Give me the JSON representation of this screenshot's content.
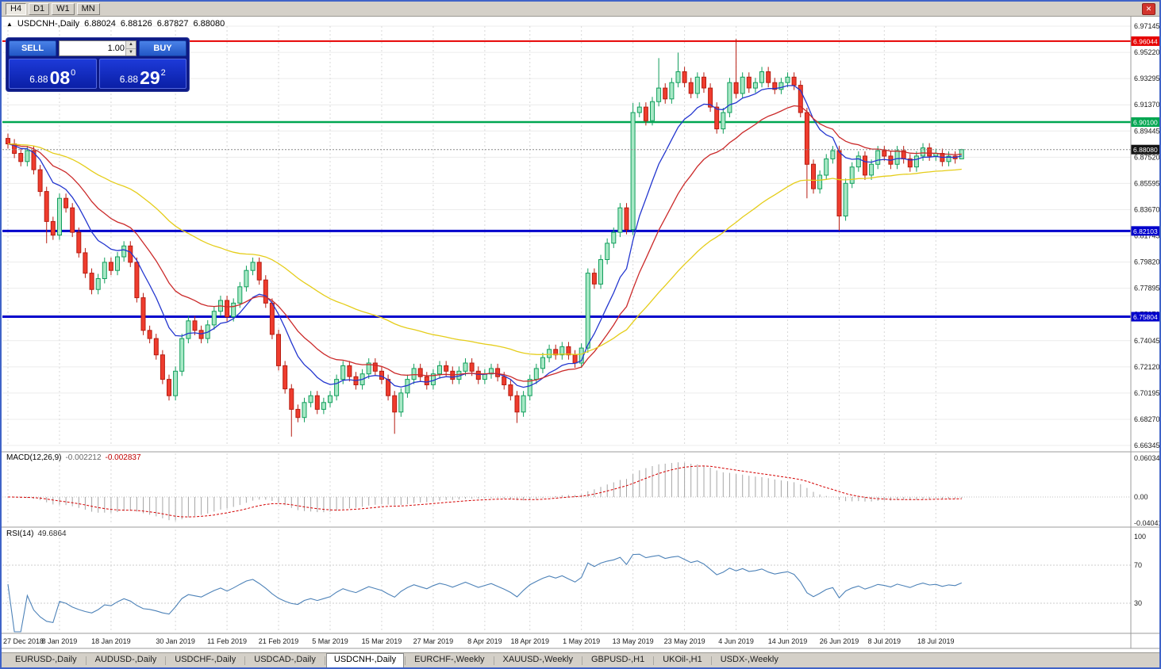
{
  "toolbar": {
    "timeframes": [
      "H4",
      "D1",
      "W1",
      "MN"
    ],
    "active_timeframe": "H4",
    "close_glyph": "✕"
  },
  "ohlc_line": {
    "expand_icon": "▲",
    "symbol": "USDCNH-,Daily",
    "open": "6.88024",
    "high": "6.88126",
    "low": "6.87827",
    "close": "6.88080"
  },
  "trade_panel": {
    "sell_label": "SELL",
    "buy_label": "BUY",
    "volume": "1.00",
    "spin_up_glyph": "▲",
    "spin_down_glyph": "▼",
    "sell_price": {
      "prefix": "6.88",
      "big": "08",
      "pip": "0"
    },
    "buy_price": {
      "prefix": "6.88",
      "big": "29",
      "pip": "2"
    }
  },
  "indicator_labels": {
    "macd_name": "MACD(12,26,9)",
    "macd_value": "-0.002212",
    "macd_signal": "-0.002837",
    "rsi_name": "RSI(14)",
    "rsi_value": "49.6864"
  },
  "tabs": [
    {
      "label": "EURUSD-,Daily"
    },
    {
      "label": "AUDUSD-,Daily"
    },
    {
      "label": "USDCHF-,Daily"
    },
    {
      "label": "USDCAD-,Daily"
    },
    {
      "label": "USDCNH-,Daily"
    },
    {
      "label": "EURCHF-,Weekly"
    },
    {
      "label": "XAUUSD-,Weekly"
    },
    {
      "label": "GBPUSD-,H1"
    },
    {
      "label": "UKOil-,H1"
    },
    {
      "label": "USDX-,Weekly"
    }
  ],
  "chart_data": {
    "type": "candlestick",
    "symbol": "USDCNH",
    "timeframe": "Daily",
    "open_first": 6.889,
    "closes": [
      6.885,
      6.878,
      6.872,
      6.88,
      6.866,
      6.85,
      6.828,
      6.818,
      6.845,
      6.838,
      6.82,
      6.805,
      6.79,
      6.778,
      6.786,
      6.798,
      6.792,
      6.802,
      6.81,
      6.798,
      6.772,
      6.748,
      6.742,
      6.73,
      6.712,
      6.7,
      6.718,
      6.742,
      6.755,
      6.748,
      6.742,
      6.752,
      6.762,
      6.77,
      6.758,
      6.768,
      6.78,
      6.792,
      6.798,
      6.785,
      6.768,
      6.745,
      6.722,
      6.705,
      6.69,
      6.684,
      6.695,
      6.7,
      6.69,
      6.695,
      6.7,
      6.712,
      6.722,
      6.714,
      6.708,
      6.716,
      6.724,
      6.718,
      6.712,
      6.7,
      6.688,
      6.702,
      6.712,
      6.72,
      6.714,
      6.708,
      6.716,
      6.722,
      6.718,
      6.712,
      6.718,
      6.724,
      6.718,
      6.712,
      6.716,
      6.72,
      6.714,
      6.708,
      6.7,
      6.688,
      6.7,
      6.712,
      6.72,
      6.728,
      6.734,
      6.73,
      6.736,
      6.73,
      6.724,
      6.735,
      6.79,
      6.782,
      6.8,
      6.812,
      6.82,
      6.838,
      6.822,
      6.908,
      6.912,
      6.902,
      6.916,
      6.926,
      6.918,
      6.93,
      6.938,
      6.93,
      6.922,
      6.934,
      6.926,
      6.912,
      6.896,
      6.908,
      6.93,
      6.922,
      6.934,
      6.926,
      6.93,
      6.938,
      6.93,
      6.925,
      6.93,
      6.934,
      6.928,
      6.908,
      6.87,
      6.852,
      6.862,
      6.874,
      6.88,
      6.832,
      6.856,
      6.868,
      6.876,
      6.862,
      6.87,
      6.88,
      6.876,
      6.87,
      6.88,
      6.874,
      6.868,
      6.876,
      6.882,
      6.876,
      6.878,
      6.872,
      6.876,
      6.874,
      6.8808
    ],
    "wick_overrides": {
      "6": {
        "l": 6.812
      },
      "44": {
        "l": 6.67
      },
      "60": {
        "l": 6.672
      },
      "79": {
        "l": 6.68
      },
      "97": {
        "h": 6.915,
        "l": 6.818
      },
      "101": {
        "h": 6.948
      },
      "104": {
        "h": 6.952
      },
      "113": {
        "h": 6.962
      },
      "124": {
        "l": 6.845
      },
      "129": {
        "l": 6.8212
      },
      "148": {
        "h": 6.8813,
        "l": 6.8782
      }
    },
    "price_axis": [
      "6.97145",
      "6.95220",
      "6.93295",
      "6.91370",
      "6.89445",
      "6.87520",
      "6.85595",
      "6.83670",
      "6.81745",
      "6.79820",
      "6.77895",
      "6.75970",
      "6.74045",
      "6.72120",
      "6.70195",
      "6.68270",
      "6.66345"
    ],
    "x_ticks": [
      {
        "index": 0,
        "label": "27 Dec 2018"
      },
      {
        "index": 8,
        "label": "8 Jan 2019"
      },
      {
        "index": 16,
        "label": "18 Jan 2019"
      },
      {
        "index": 26,
        "label": "30 Jan 2019"
      },
      {
        "index": 34,
        "label": "11 Feb 2019"
      },
      {
        "index": 42,
        "label": "21 Feb 2019"
      },
      {
        "index": 50,
        "label": "5 Mar 2019"
      },
      {
        "index": 58,
        "label": "15 Mar 2019"
      },
      {
        "index": 66,
        "label": "27 Mar 2019"
      },
      {
        "index": 74,
        "label": "8 Apr 2019"
      },
      {
        "index": 81,
        "label": "18 Apr 2019"
      },
      {
        "index": 89,
        "label": "1 May 2019"
      },
      {
        "index": 97,
        "label": "13 May 2019"
      },
      {
        "index": 105,
        "label": "23 May 2019"
      },
      {
        "index": 113,
        "label": "4 Jun 2019"
      },
      {
        "index": 121,
        "label": "14 Jun 2019"
      },
      {
        "index": 129,
        "label": "26 Jun 2019"
      },
      {
        "index": 136,
        "label": "8 Jul 2019"
      },
      {
        "index": 144,
        "label": "18 Jul 2019"
      }
    ],
    "levels": [
      {
        "price": 6.96044,
        "label": "6.96044",
        "color": "#e60000",
        "width": 2
      },
      {
        "price": 6.901,
        "label": "6.90100",
        "color": "#00a651",
        "width": 2.5
      },
      {
        "price": 6.82103,
        "label": "6.82103",
        "color": "#0000cc",
        "width": 3
      },
      {
        "price": 6.75804,
        "label": "6.75804",
        "color": "#0000cc",
        "width": 3
      }
    ],
    "current_price": {
      "value": 6.8808,
      "label": "6.88080",
      "badge_color": "#141414"
    },
    "moving_averages": [
      {
        "period": 10,
        "color": "#2336cf"
      },
      {
        "period": 21,
        "color": "#cb2a2a"
      },
      {
        "period": 55,
        "color": "#e5cd1a"
      }
    ],
    "candle_colors": {
      "up_fill": "#a7e8c5",
      "up_stroke": "#119e5c",
      "down_fill": "#ef3c2e",
      "down_stroke": "#b71d12"
    },
    "indicators": {
      "macd": {
        "params": "12,26,9",
        "histogram_color": "#a6a6a6",
        "signal_color": "#d40000",
        "axis": [
          {
            "v": 0.060342,
            "label": "0.060342"
          },
          {
            "v": 0,
            "label": "0.00"
          },
          {
            "v": -0.040415,
            "label": "-0.040415"
          }
        ]
      },
      "rsi": {
        "period": 14,
        "color": "#4d82b8",
        "levels": [
          70,
          30
        ],
        "axis": [
          {
            "v": 100,
            "label": "100"
          },
          {
            "v": 70,
            "label": "70"
          },
          {
            "v": 30,
            "label": "30"
          }
        ]
      }
    }
  }
}
